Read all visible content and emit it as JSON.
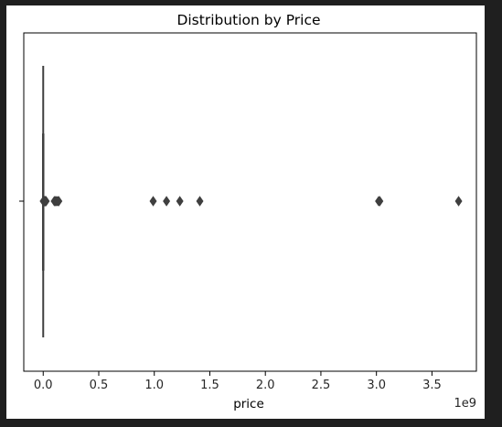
{
  "chart_data": {
    "type": "boxplot",
    "title": "Distribution by Price",
    "xlabel": "price",
    "ylabel": "",
    "offset_text": "1e9",
    "x_scale": 1000000000,
    "xlim": [
      -0.175,
      3.9
    ],
    "xticks": [
      0.0,
      0.5,
      1.0,
      1.5,
      2.0,
      2.5,
      3.0,
      3.5
    ],
    "xtick_labels": [
      "0.0",
      "0.5",
      "1.0",
      "1.5",
      "2.0",
      "2.5",
      "3.0",
      "3.5"
    ],
    "grid": false,
    "legend": "none",
    "box": {
      "min": 0.0,
      "q1": 0.0,
      "median": 0.0,
      "q3": 0.0,
      "max": 0.0
    },
    "outliers": [
      0.001,
      0.004,
      0.008,
      0.012,
      0.016,
      0.021,
      0.026,
      0.1,
      0.11,
      0.12,
      0.13,
      0.14,
      0.99,
      1.11,
      1.23,
      1.41,
      3.02,
      3.03,
      3.74
    ],
    "colors": {
      "box_line": "#3f3f3f",
      "marker": "#3f3f3f",
      "axes": "#000000"
    }
  }
}
